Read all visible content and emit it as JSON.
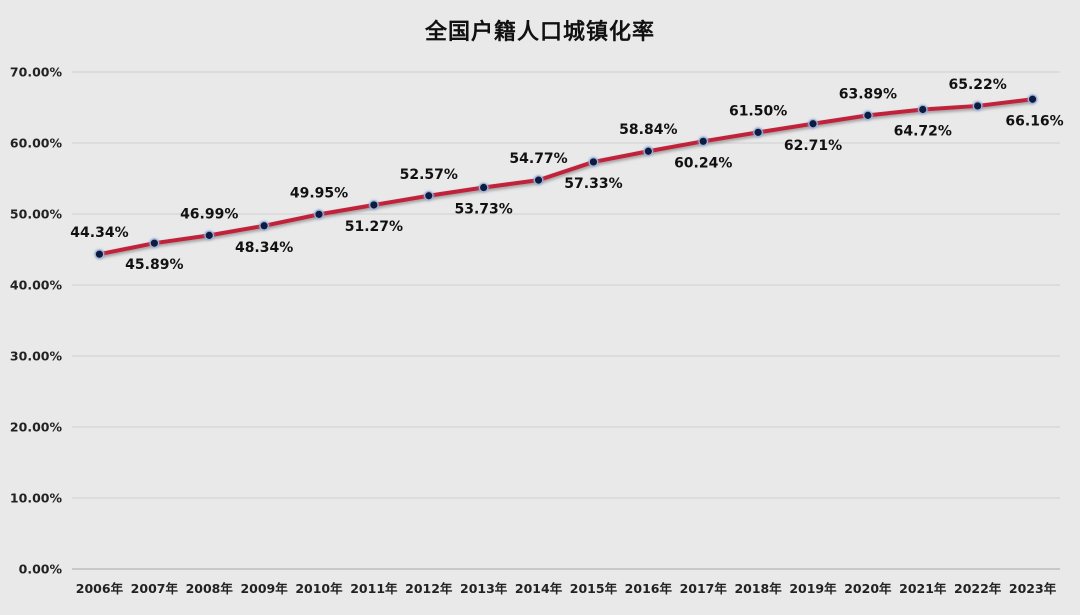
{
  "chart_data": {
    "type": "line",
    "title": "全国户籍人口城镇化率",
    "categories": [
      "2006年",
      "2007年",
      "2008年",
      "2009年",
      "2010年",
      "2011年",
      "2012年",
      "2013年",
      "2014年",
      "2015年",
      "2016年",
      "2017年",
      "2018年",
      "2019年",
      "2020年",
      "2021年",
      "2022年",
      "2023年"
    ],
    "series": [
      {
        "values": [
          44.34,
          45.89,
          46.99,
          48.34,
          49.95,
          51.27,
          52.57,
          53.73,
          54.77,
          57.33,
          58.84,
          60.24,
          61.5,
          62.71,
          63.89,
          64.72,
          65.22,
          66.16
        ],
        "labels": [
          "44.34%",
          "45.89%",
          "46.99%",
          "48.34%",
          "49.95%",
          "51.27%",
          "52.57%",
          "53.73%",
          "54.77%",
          "57.33%",
          "58.84%",
          "60.24%",
          "61.50%",
          "62.71%",
          "63.89%",
          "64.72%",
          "65.22%",
          "66.16%"
        ],
        "label_positions": [
          "above",
          "below",
          "above",
          "below",
          "above",
          "below",
          "above",
          "below",
          "above",
          "below",
          "above",
          "below",
          "above",
          "below",
          "above",
          "below",
          "above",
          "below"
        ],
        "line_color": "#c0243a",
        "marker_color": "#0d1b3e"
      }
    ],
    "ylim": [
      0,
      70
    ],
    "yticks": [
      0,
      10,
      20,
      30,
      40,
      50,
      60,
      70
    ],
    "ytick_labels": [
      "0.00%",
      "10.00%",
      "20.00%",
      "30.00%",
      "40.00%",
      "50.00%",
      "60.00%",
      "70.00%"
    ],
    "xlabel": "",
    "ylabel": "",
    "grid": true,
    "legend": "none"
  }
}
